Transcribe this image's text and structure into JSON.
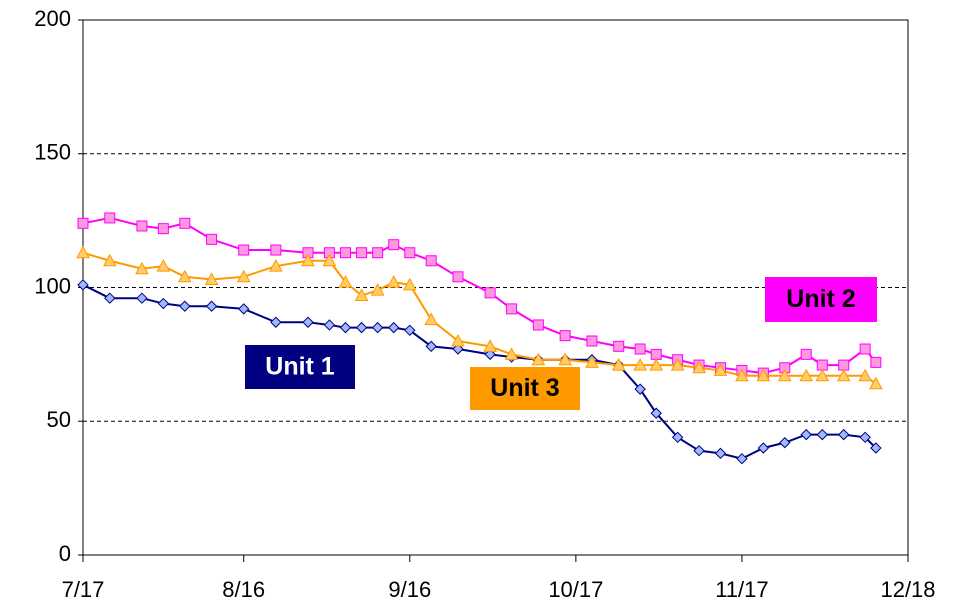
{
  "chart_data": {
    "type": "line",
    "x": [
      "7/17",
      "7/22",
      "7/28",
      "8/1",
      "8/5",
      "8/10",
      "8/16",
      "8/22",
      "8/28",
      "9/1",
      "9/4",
      "9/7",
      "9/10",
      "9/13",
      "9/16",
      "9/20",
      "9/25",
      "10/1",
      "10/5",
      "10/10",
      "10/15",
      "10/20",
      "10/25",
      "10/29",
      "11/1",
      "11/5",
      "11/9",
      "11/13",
      "11/17",
      "11/21",
      "11/25",
      "11/29",
      "12/2",
      "12/6",
      "12/10",
      "12/12"
    ],
    "series": [
      {
        "name": "Unit 1",
        "color": "#000080",
        "values": [
          101,
          96,
          96,
          94,
          93,
          93,
          92,
          87,
          87,
          86,
          85,
          85,
          85,
          85,
          84,
          78,
          77,
          75,
          74,
          73,
          73,
          73,
          71,
          62,
          53,
          44,
          39,
          38,
          36,
          40,
          42,
          45,
          45,
          45,
          44,
          40
        ]
      },
      {
        "name": "Unit 2",
        "color": "#ff00ff",
        "values": [
          124,
          126,
          123,
          122,
          124,
          118,
          114,
          114,
          113,
          113,
          113,
          113,
          113,
          116,
          113,
          110,
          104,
          98,
          92,
          86,
          82,
          80,
          78,
          77,
          75,
          73,
          71,
          70,
          69,
          68,
          70,
          75,
          71,
          71,
          77,
          72
        ]
      },
      {
        "name": "Unit 3",
        "color": "#ff9900",
        "values": [
          113,
          110,
          107,
          108,
          104,
          103,
          104,
          108,
          110,
          110,
          102,
          97,
          99,
          102,
          101,
          88,
          80,
          78,
          75,
          73,
          73,
          72,
          71,
          71,
          71,
          71,
          70,
          69,
          67,
          67,
          67,
          67,
          67,
          67,
          67,
          64
        ]
      }
    ],
    "xlim": [
      "7/17",
      "12/18"
    ],
    "xticks": [
      "7/17",
      "8/16",
      "9/16",
      "10/17",
      "11/17",
      "12/18"
    ],
    "ylim": [
      0,
      200
    ],
    "yticks": [
      0,
      50,
      100,
      150,
      200
    ],
    "grid": true
  }
}
